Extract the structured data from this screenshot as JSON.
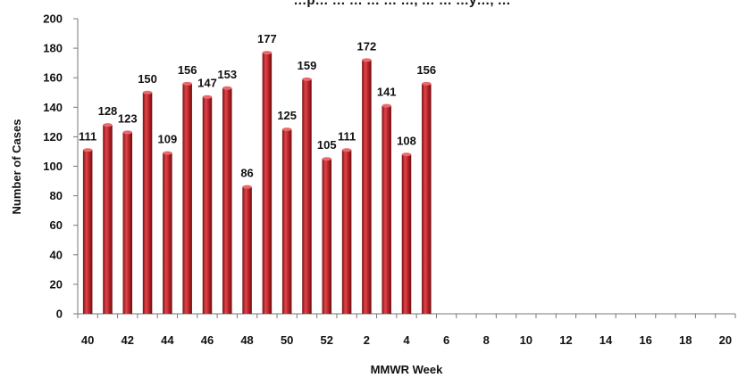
{
  "chart_data": {
    "type": "bar",
    "title": "…p… … … … … …, … … …y…, …",
    "xlabel": "MMWR Week",
    "ylabel": "Number of Cases",
    "ylim": [
      0,
      200
    ],
    "yticks": [
      "0",
      "20",
      "40",
      "60",
      "80",
      "100",
      "120",
      "140",
      "160",
      "180",
      "200"
    ],
    "categories": [
      "40",
      "41",
      "42",
      "43",
      "44",
      "45",
      "46",
      "47",
      "48",
      "49",
      "50",
      "51",
      "52",
      "1",
      "2",
      "3",
      "4",
      "5",
      "6",
      "7",
      "8",
      "9",
      "10",
      "11",
      "12",
      "13",
      "14",
      "15",
      "16",
      "17",
      "18",
      "19",
      "20"
    ],
    "xtick_labels": [
      "40",
      "",
      "42",
      "",
      "44",
      "",
      "46",
      "",
      "48",
      "",
      "50",
      "",
      "52",
      "",
      "2",
      "",
      "4",
      "",
      "6",
      "",
      "8",
      "",
      "10",
      "",
      "12",
      "",
      "14",
      "",
      "16",
      "",
      "18",
      "",
      "20"
    ],
    "values": [
      111,
      128,
      123,
      150,
      109,
      156,
      147,
      153,
      86,
      177,
      125,
      159,
      105,
      111,
      172,
      141,
      108,
      156,
      null,
      null,
      null,
      null,
      null,
      null,
      null,
      null,
      null,
      null,
      null,
      null,
      null,
      null,
      null
    ],
    "bar_color": "#c0282d",
    "grid": false,
    "legend": "none"
  }
}
